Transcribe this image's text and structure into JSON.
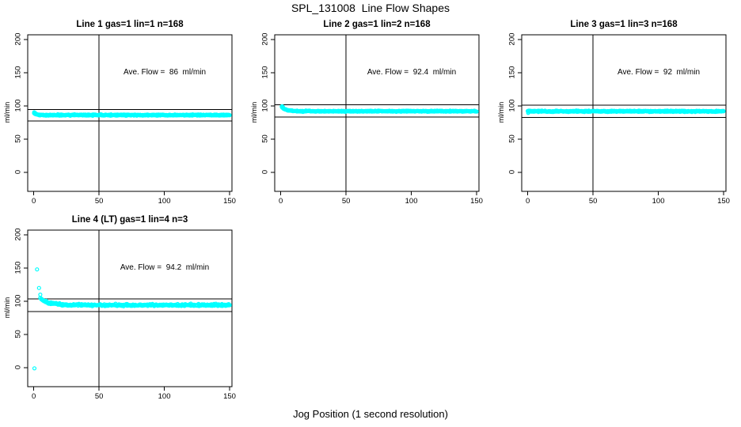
{
  "figure": {
    "title": "SPL_131008  Line Flow Shapes",
    "xlabel": "Jog Position (1 second resolution)"
  },
  "chart_data": {
    "type": "scatter",
    "title": "SPL_131008  Line Flow Shapes",
    "xlabel": "Jog Position (1 second resolution)",
    "ylabel": "ml/min",
    "point_color": "#00FFFF",
    "axis_color": "#000000",
    "background_color": "#FFFFFF",
    "xlim": [
      0,
      150
    ],
    "ylim": [
      0,
      200
    ],
    "xticks": [
      0,
      50,
      100,
      150
    ],
    "yticks": [
      0,
      50,
      100,
      150,
      200
    ],
    "grid": false,
    "legend": null,
    "layout_grid": {
      "rows": 2,
      "cols": 3,
      "used_panels": 4
    },
    "plots": [
      {
        "title": "Line 1 gas=1 lin=1 n=168",
        "annotation": "Ave. Flow =  86  ml/min",
        "ave_flow_ml_min": 86,
        "n_jogs": 168,
        "ref_lines": {
          "upper_y": 94.6,
          "lower_y": 77.4,
          "vertical_x": 50
        },
        "band": {
          "x_start": 0,
          "x_end": 150,
          "y_initial": 89.5,
          "y_settle": 86.3,
          "decay": 0.5,
          "noise": 1.5,
          "n_points": 520
        },
        "outliers": [
          [
            0.3,
            90.5
          ],
          [
            0.8,
            89.8
          ],
          [
            1.5,
            88.5
          ]
        ],
        "marker": {
          "radius": 1.7,
          "stroke_width": 1.8
        }
      },
      {
        "title": "Line 2 gas=1 lin=2 n=168",
        "annotation": "Ave. Flow =  92.4  ml/min",
        "ave_flow_ml_min": 92.4,
        "n_jogs": 168,
        "ref_lines": {
          "upper_y": 101.6,
          "lower_y": 83.2,
          "vertical_x": 50
        },
        "band": {
          "x_start": 0.5,
          "x_end": 150,
          "y_initial": 99,
          "y_settle": 92.1,
          "decay": 0.3,
          "noise": 1.3,
          "n_points": 520
        },
        "outliers": [
          [
            1,
            99.5
          ],
          [
            1.6,
            98.6
          ]
        ],
        "marker": {
          "radius": 1.7,
          "stroke_width": 1.8
        }
      },
      {
        "title": "Line 3 gas=1 lin=3 n=168",
        "annotation": "Ave. Flow =  92  ml/min",
        "ave_flow_ml_min": 92,
        "n_jogs": 168,
        "ref_lines": {
          "upper_y": 101.2,
          "lower_y": 82.8,
          "vertical_x": 50
        },
        "band": {
          "x_start": 0,
          "x_end": 150,
          "y_initial": 92.5,
          "y_settle": 92,
          "decay": 0.8,
          "noise": 1.5,
          "n_points": 540
        },
        "outliers": [
          [
            0.3,
            89.5
          ]
        ],
        "marker": {
          "radius": 1.7,
          "stroke_width": 1.8
        }
      },
      {
        "title": "Line 4 (LT) gas=1 lin=4 n=3",
        "annotation": "Ave. Flow =  94.2  ml/min",
        "ave_flow_ml_min": 94.2,
        "n_jogs": 3,
        "ref_lines": {
          "upper_y": 103.6,
          "lower_y": 84.8,
          "vertical_x": 50
        },
        "band": {
          "x_start": 5,
          "x_end": 150,
          "y_initial": 104,
          "y_settle": 94.3,
          "decay": 0.15,
          "noise": 2.6,
          "n_points": 400
        },
        "outliers": [
          [
            0.5,
            -1
          ],
          [
            2.5,
            148
          ],
          [
            4,
            120
          ],
          [
            5,
            110
          ]
        ],
        "marker": {
          "radius": 2.0,
          "stroke_width": 1.2
        }
      }
    ]
  }
}
